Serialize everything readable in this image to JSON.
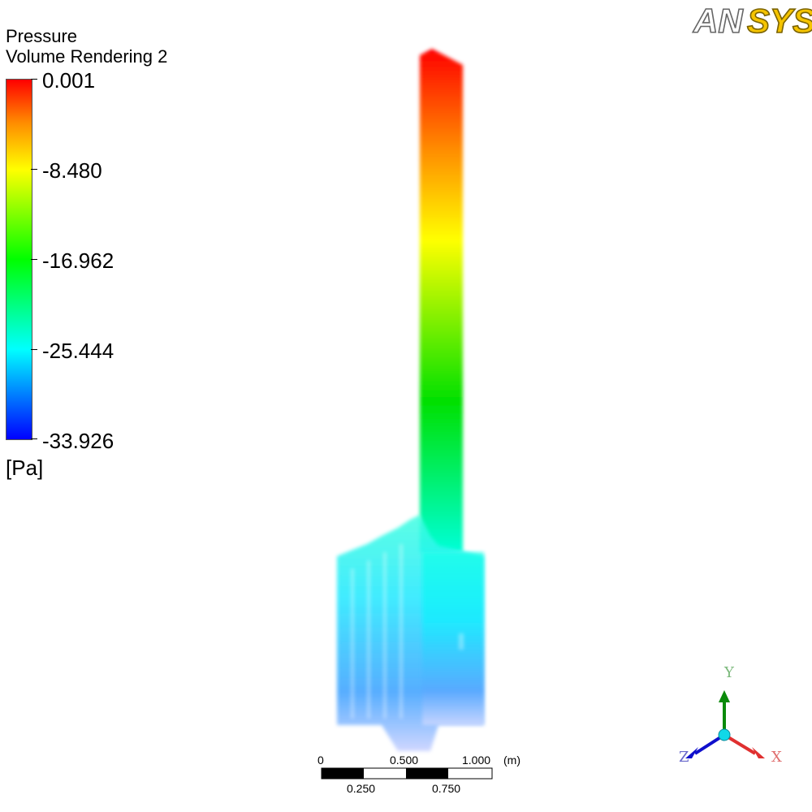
{
  "logo": {
    "text_a": "AN",
    "text_b": "SYS"
  },
  "legend": {
    "title": "Pressure",
    "subtitle": "Volume Rendering 2",
    "ticks": [
      "0.001",
      "-8.480",
      "-16.962",
      "-25.444",
      "-33.926"
    ],
    "unit": "[Pa]"
  },
  "scale_bar": {
    "top_labels": [
      "0",
      "0.500",
      "1.000"
    ],
    "unit": "(m)",
    "bottom_labels": [
      "0.250",
      "0.750"
    ]
  },
  "axes": {
    "x": "X",
    "y": "Y",
    "z": "Z"
  },
  "colors": {
    "x_axis": "#e03030",
    "y_axis": "#0a8a0a",
    "z_axis": "#1010cc",
    "origin": "#10d8e8"
  }
}
